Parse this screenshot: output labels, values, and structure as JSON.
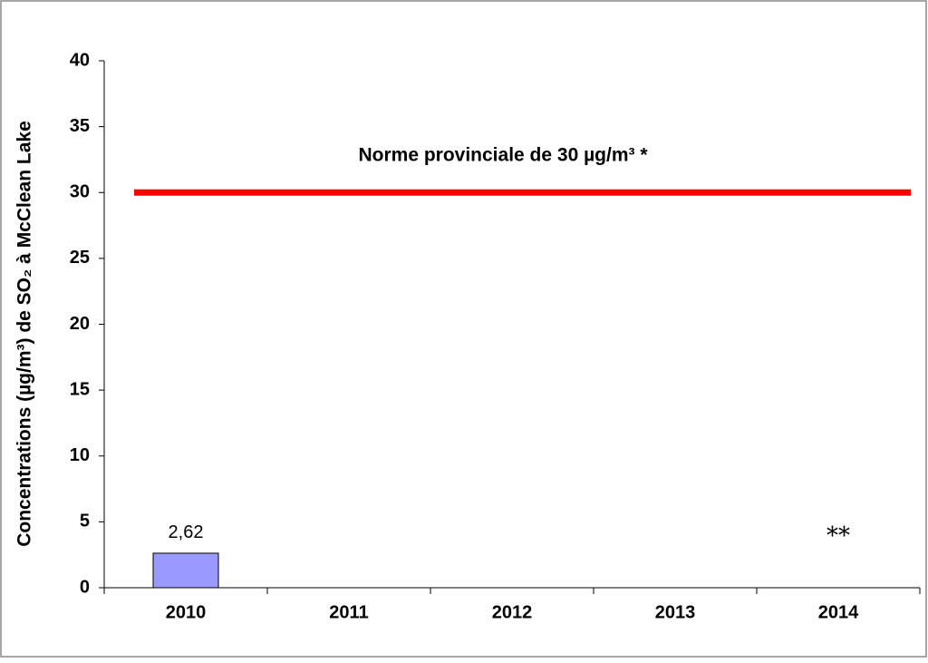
{
  "chart_data": {
    "type": "bar",
    "y_label": "Concentrations (µg/m³) de SO₂ à McClean Lake",
    "categories": [
      "2010",
      "2011",
      "2012",
      "2013",
      "2014"
    ],
    "values": [
      2.62,
      null,
      null,
      null,
      null
    ],
    "value_labels": [
      "2,62",
      null,
      null,
      null,
      null
    ],
    "color": "#9999ff",
    "ylim": [
      0,
      40
    ],
    "yticks": [
      0,
      5,
      10,
      15,
      20,
      25,
      30,
      35,
      40
    ],
    "reference_line": {
      "value": 30,
      "label": "Norme provinciale de 30 µg/m³ *",
      "color": "#ff0000"
    },
    "annotations": [
      {
        "text": "**"
      }
    ]
  }
}
